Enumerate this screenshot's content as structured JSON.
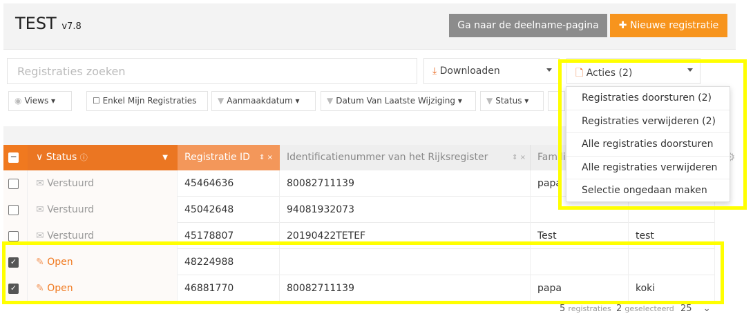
{
  "header": {
    "title": "TEST",
    "version": "v7.8",
    "participation_button": "Ga naar de deelname-pagina",
    "new_button": "Nieuwe registratie"
  },
  "toolbar": {
    "search_placeholder": "Registraties zoeken",
    "download_label": "Downloaden",
    "actions_label": "Acties (2)"
  },
  "filters": {
    "views": "Views",
    "only_mine": "Enkel Mijn Registraties",
    "created": "Aanmaakdatum",
    "modified": "Datum Van Laatste Wijziging",
    "status": "Status"
  },
  "actions_menu": [
    "Registraties doorsturen (2)",
    "Registraties verwijderen (2)",
    "Alle registraties doorsturen",
    "Alle registraties verwijderen",
    "Selectie ongedaan maken"
  ],
  "table": {
    "columns": {
      "status": "Status",
      "id": "Registratie ID",
      "national_id": "Identificatienummer van het Rijksregister",
      "family": "Familienaam"
    },
    "rows": [
      {
        "checked": false,
        "status": "Verstuurd",
        "id": "45464636",
        "national_id": "80082711139",
        "family": "papa",
        "first": ""
      },
      {
        "checked": false,
        "status": "Verstuurd",
        "id": "45042648",
        "national_id": "94081932073",
        "family": "",
        "first": ""
      },
      {
        "checked": false,
        "status": "Verstuurd",
        "id": "45178807",
        "national_id": "20190422TETEF",
        "family": "Test",
        "first": "test"
      },
      {
        "checked": true,
        "status": "Open",
        "id": "48224988",
        "national_id": "",
        "family": "",
        "first": ""
      },
      {
        "checked": true,
        "status": "Open",
        "id": "46881770",
        "national_id": "80082711139",
        "family": "papa",
        "first": "koki"
      }
    ]
  },
  "footer": {
    "count": "5",
    "count_label": "registraties",
    "selected": "2",
    "selected_label": "geselecteerd",
    "page_size": "25"
  },
  "colors": {
    "orange": "#f0791f",
    "orange_light": "#f3975a",
    "gray_button": "#8c8c8c",
    "new_button": "#f7941d",
    "highlight": "#ffff00"
  }
}
